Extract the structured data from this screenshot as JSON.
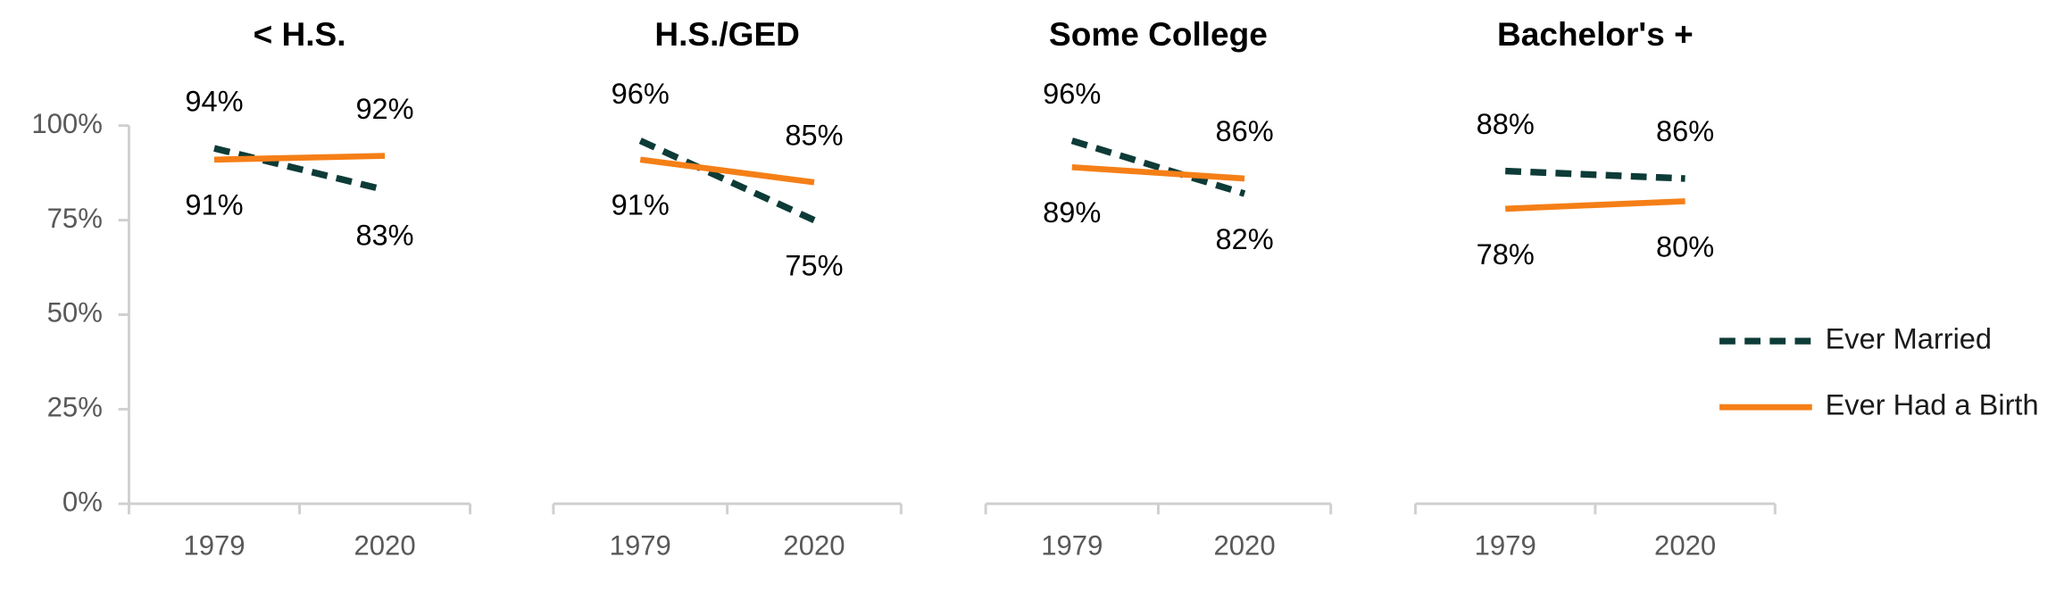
{
  "chart_data": [
    {
      "type": "line",
      "title": "< H.S.",
      "categories": [
        "1979",
        "2020"
      ],
      "ylim": [
        0,
        100
      ],
      "yticks": [
        {
          "value": 0,
          "label": "0%"
        },
        {
          "value": 25,
          "label": "25%"
        },
        {
          "value": 50,
          "label": "50%"
        },
        {
          "value": 75,
          "label": "75%"
        },
        {
          "value": 100,
          "label": "100%"
        }
      ],
      "series": [
        {
          "color": "#0d3b37",
          "dashed": true,
          "values": [
            94,
            83
          ],
          "value_labels": [
            "94%",
            "83%"
          ]
        },
        {
          "color": "#f57f17",
          "dashed": false,
          "values": [
            91,
            92
          ],
          "value_labels": [
            "91%",
            "92%"
          ]
        }
      ]
    },
    {
      "type": "line",
      "title": "H.S./GED",
      "categories": [
        "1979",
        "2020"
      ],
      "ylim": [
        0,
        100
      ],
      "series": [
        {
          "color": "#0d3b37",
          "dashed": true,
          "values": [
            96,
            75
          ],
          "value_labels": [
            "96%",
            "75%"
          ]
        },
        {
          "color": "#f57f17",
          "dashed": false,
          "values": [
            91,
            85
          ],
          "value_labels": [
            "91%",
            "85%"
          ]
        }
      ]
    },
    {
      "type": "line",
      "title": "Some College",
      "categories": [
        "1979",
        "2020"
      ],
      "ylim": [
        0,
        100
      ],
      "series": [
        {
          "color": "#0d3b37",
          "dashed": true,
          "values": [
            96,
            82
          ],
          "value_labels": [
            "96%",
            "82%"
          ]
        },
        {
          "color": "#f57f17",
          "dashed": false,
          "values": [
            89,
            86
          ],
          "value_labels": [
            "89%",
            "86%"
          ]
        }
      ]
    },
    {
      "type": "line",
      "title": "Bachelor's +",
      "categories": [
        "1979",
        "2020"
      ],
      "ylim": [
        0,
        100
      ],
      "legend": "right",
      "series": [
        {
          "name": "Ever Married",
          "color": "#0d3b37",
          "dashed": true,
          "values": [
            88,
            86
          ],
          "value_labels": [
            "88%",
            "86%"
          ]
        },
        {
          "name": "Ever Had a Birth",
          "color": "#f57f17",
          "dashed": false,
          "values": [
            78,
            80
          ],
          "value_labels": [
            "78%",
            "80%"
          ]
        }
      ]
    }
  ]
}
